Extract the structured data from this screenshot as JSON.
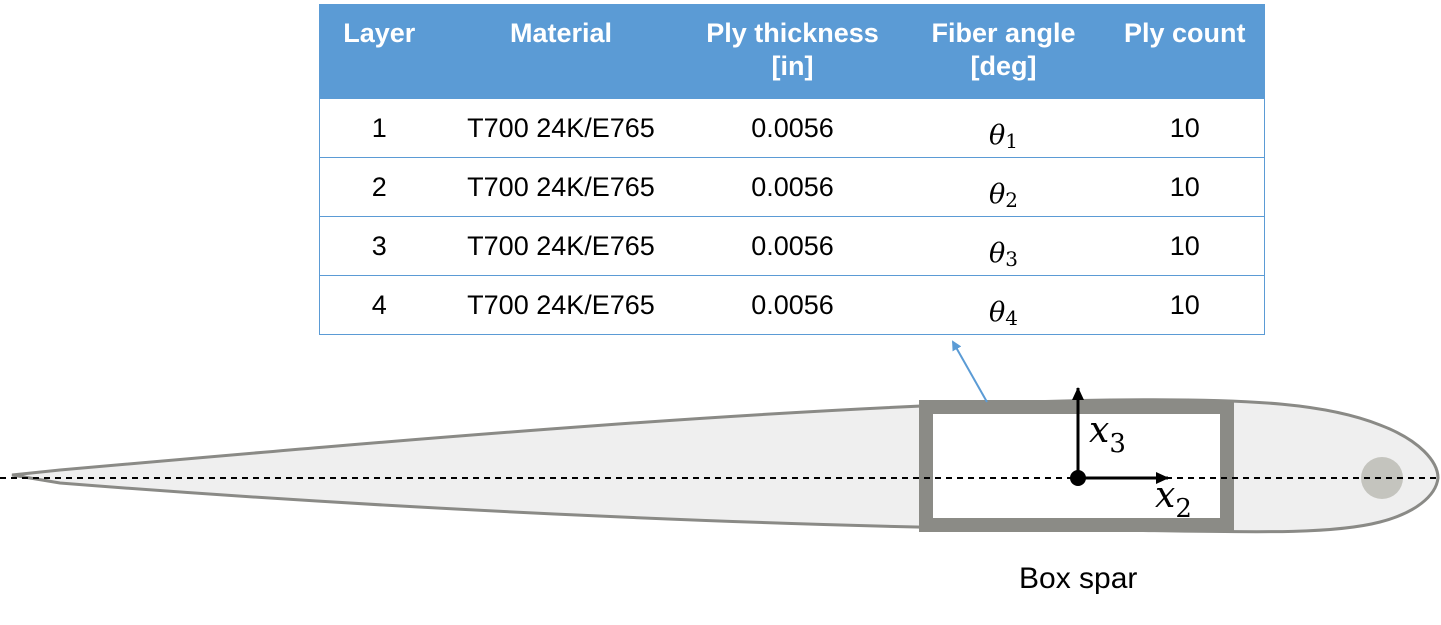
{
  "table": {
    "headers": [
      {
        "line1": "Layer",
        "line2": ""
      },
      {
        "line1": "Material",
        "line2": ""
      },
      {
        "line1": "Ply thickness",
        "line2": "[in]"
      },
      {
        "line1": "Fiber angle",
        "line2": "[deg]"
      },
      {
        "line1": "Ply count",
        "line2": ""
      }
    ],
    "rows": [
      {
        "layer": "1",
        "material": "T700 24K/E765",
        "thickness": "0.0056",
        "angle_symbol": "θ",
        "angle_sub": "1",
        "count": "10"
      },
      {
        "layer": "2",
        "material": "T700 24K/E765",
        "thickness": "0.0056",
        "angle_symbol": "θ",
        "angle_sub": "2",
        "count": "10"
      },
      {
        "layer": "3",
        "material": "T700 24K/E765",
        "thickness": "0.0056",
        "angle_symbol": "θ",
        "angle_sub": "3",
        "count": "10"
      },
      {
        "layer": "4",
        "material": "T700 24K/E765",
        "thickness": "0.0056",
        "angle_symbol": "θ",
        "angle_sub": "4",
        "count": "10"
      }
    ]
  },
  "diagram": {
    "axis_x3": {
      "symbol": "x",
      "sub": "3"
    },
    "axis_x2": {
      "symbol": "x",
      "sub": "2"
    },
    "caption": "Box spar",
    "colors": {
      "header_bg": "#5b9bd5",
      "airfoil_fill": "#efefef",
      "airfoil_stroke": "#8a8a86",
      "spar_stroke": "#8b8b86",
      "arrow": "#5b9bd5",
      "balance_weight": "#c4c4be"
    }
  }
}
